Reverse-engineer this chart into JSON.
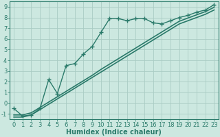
{
  "x_values": [
    0,
    1,
    2,
    3,
    4,
    5,
    6,
    7,
    8,
    9,
    10,
    11,
    12,
    13,
    14,
    15,
    16,
    17,
    18,
    19,
    20,
    21,
    22,
    23
  ],
  "line1_y": [
    -0.5,
    -1.2,
    -1.1,
    -0.5,
    2.2,
    0.9,
    3.5,
    3.7,
    4.6,
    5.3,
    6.6,
    7.9,
    7.9,
    7.7,
    7.9,
    7.9,
    7.5,
    7.4,
    7.7,
    8.0,
    8.2,
    8.5,
    8.7,
    9.2
  ],
  "line2_y": [
    -1.1,
    -1.1,
    -0.9,
    -0.4,
    0.1,
    0.6,
    1.1,
    1.6,
    2.1,
    2.6,
    3.15,
    3.65,
    4.15,
    4.65,
    5.15,
    5.65,
    6.15,
    6.65,
    7.15,
    7.65,
    7.95,
    8.25,
    8.55,
    8.95
  ],
  "line3_y": [
    -1.3,
    -1.3,
    -1.1,
    -0.6,
    -0.1,
    0.4,
    0.9,
    1.4,
    1.9,
    2.4,
    2.9,
    3.4,
    3.9,
    4.4,
    4.9,
    5.4,
    5.9,
    6.4,
    6.9,
    7.4,
    7.7,
    8.0,
    8.3,
    8.7
  ],
  "bg_color": "#cce8e0",
  "grid_color": "#aaccC4",
  "line_color": "#2a7a6a",
  "xlabel": "Humidex (Indice chaleur)",
  "ylim": [
    -1.5,
    9.5
  ],
  "xlim": [
    -0.5,
    23.5
  ],
  "yticks": [
    -1,
    0,
    1,
    2,
    3,
    4,
    5,
    6,
    7,
    8,
    9
  ],
  "xticks": [
    0,
    1,
    2,
    3,
    4,
    5,
    6,
    7,
    8,
    9,
    10,
    11,
    12,
    13,
    14,
    15,
    16,
    17,
    18,
    19,
    20,
    21,
    22,
    23
  ],
  "marker": "+",
  "marker_size": 4,
  "line_width": 1.0,
  "xlabel_fontsize": 7,
  "tick_fontsize": 6
}
